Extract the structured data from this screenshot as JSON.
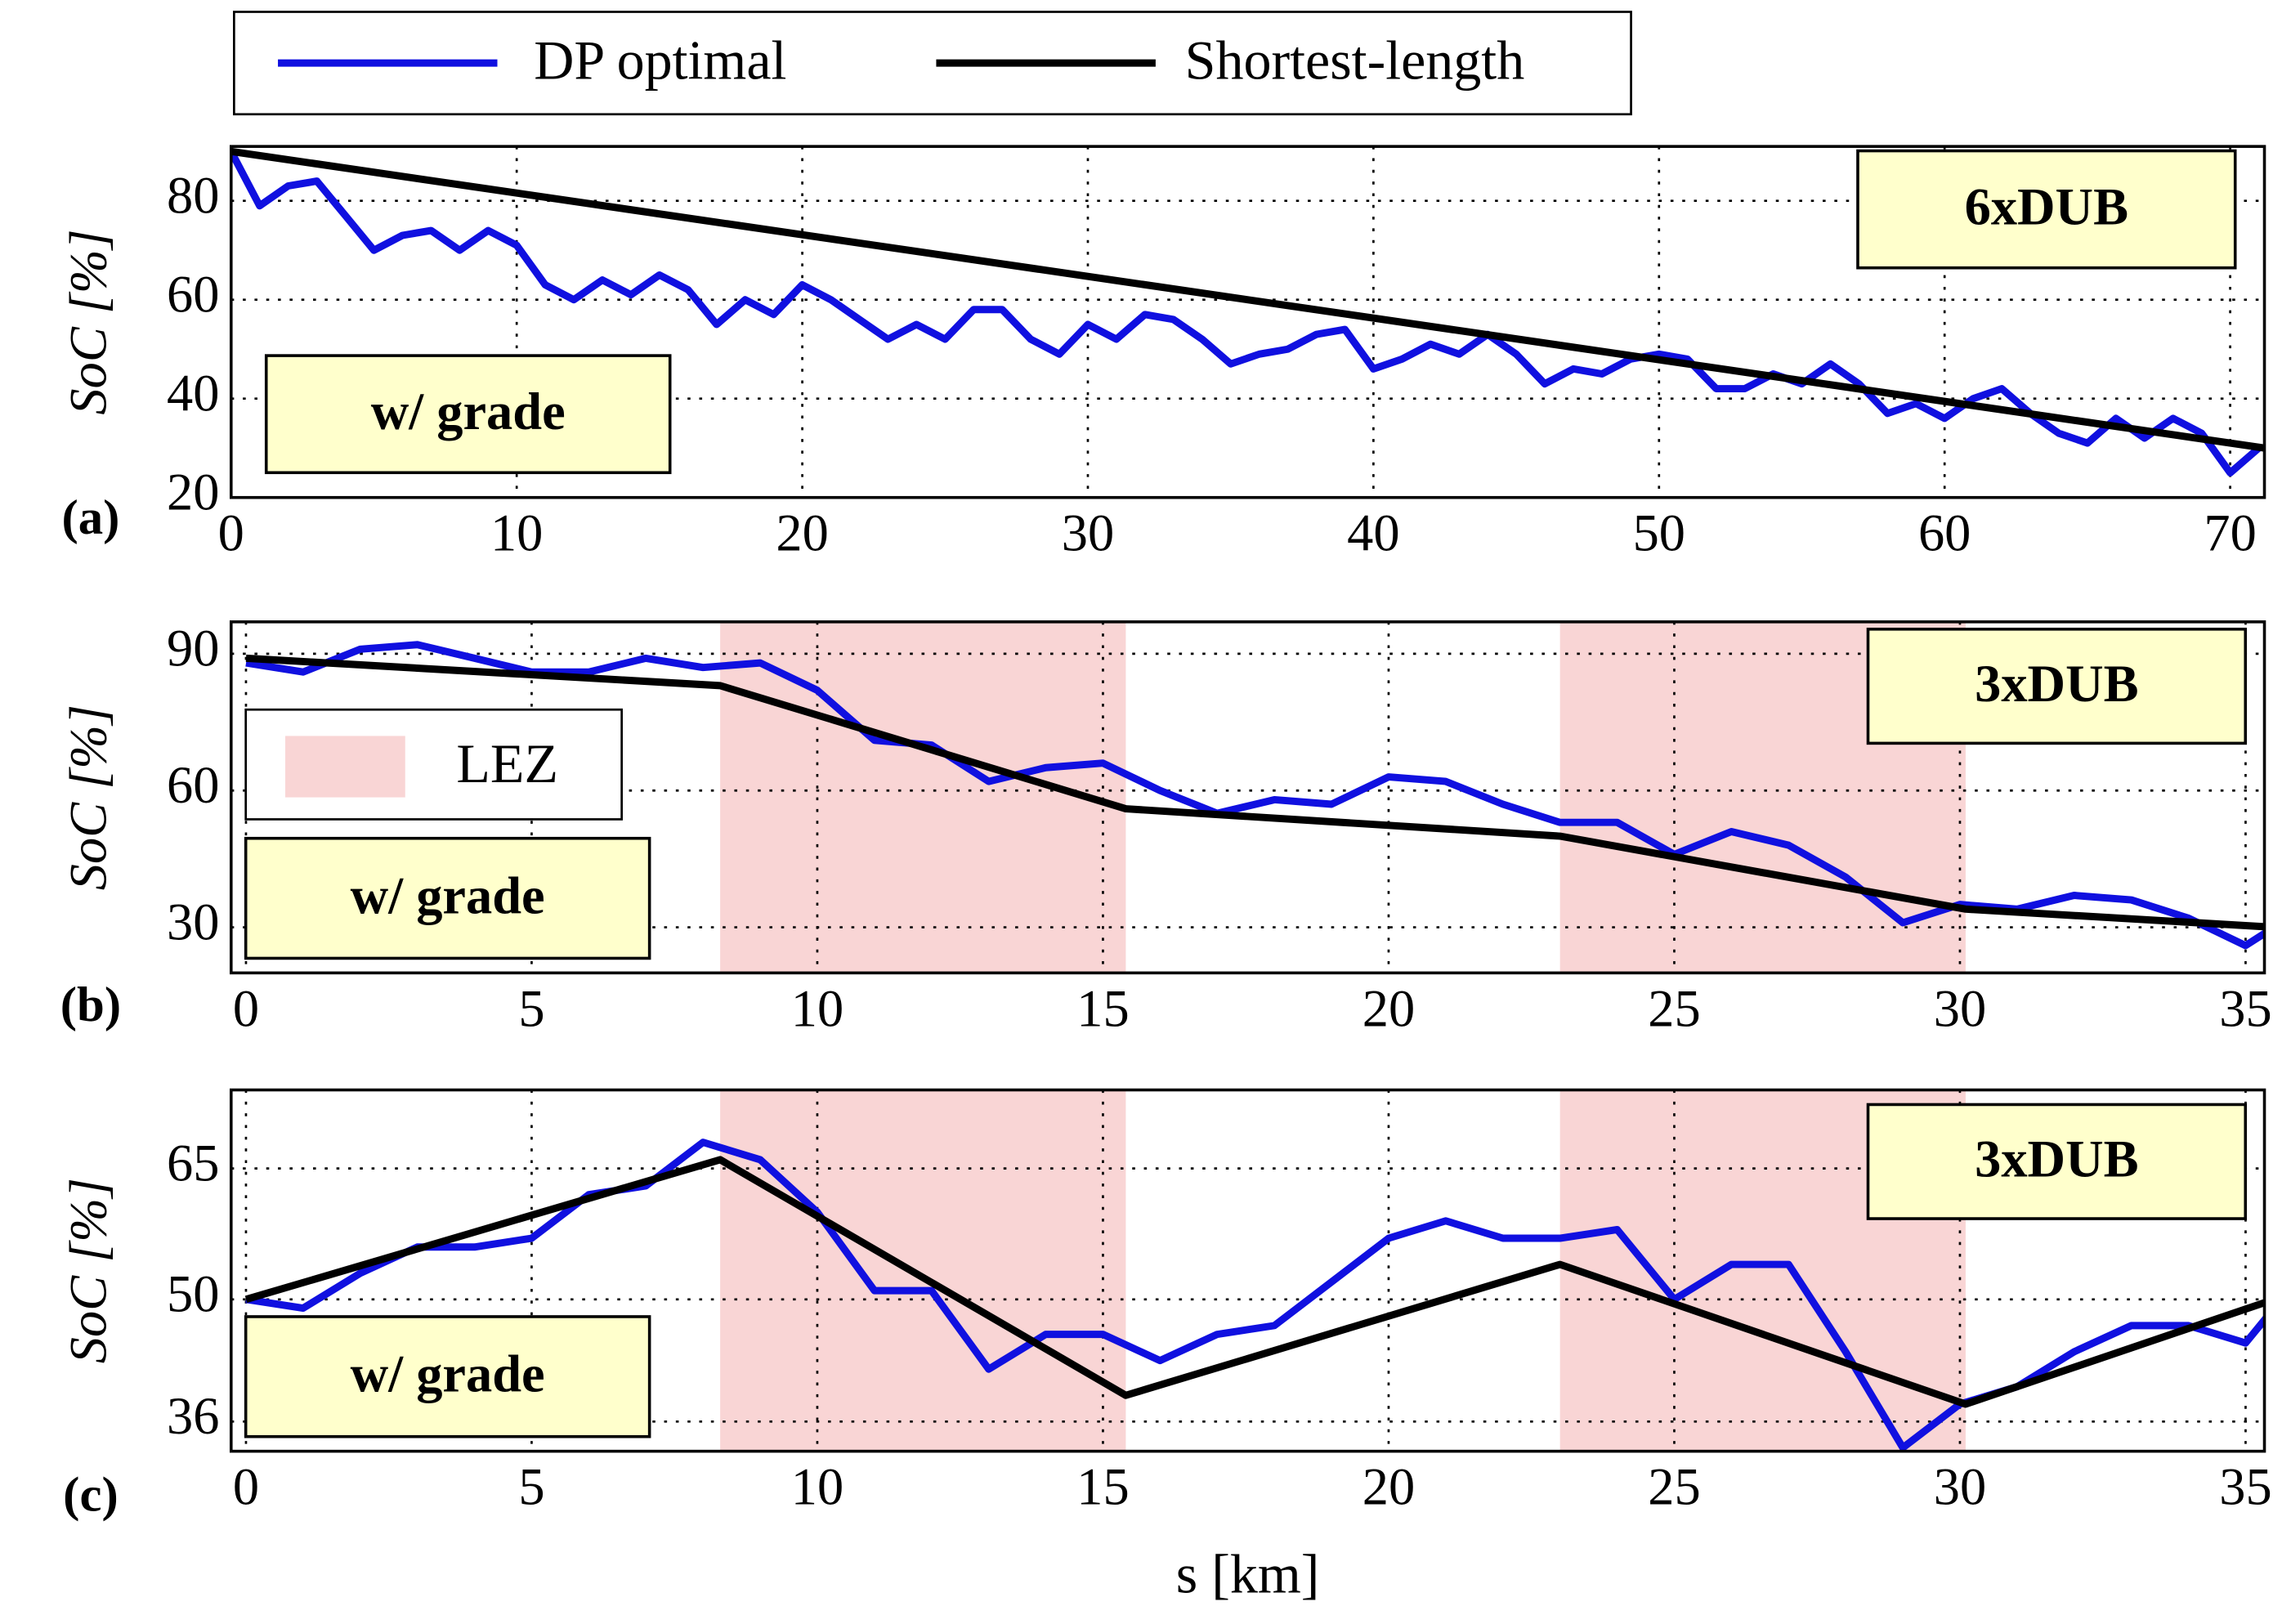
{
  "chart_data": [
    {
      "type": "line",
      "panel_label": "(a)",
      "y_label": "SoC [%]",
      "annotations": [
        "6xDUB",
        "w/ grade"
      ],
      "xlim": [
        0,
        71.2
      ],
      "xticks": [
        0,
        10,
        20,
        30,
        40,
        50,
        60,
        70
      ],
      "ylim": [
        20,
        91
      ],
      "yticks": [
        20,
        40,
        60,
        80
      ],
      "grid": true,
      "series": [
        {
          "name": "DP optimal",
          "color": "#1010e0",
          "x": [
            0,
            1,
            2,
            3,
            4,
            5,
            6,
            7,
            8,
            9,
            10,
            11,
            12,
            13,
            14,
            15,
            16,
            17,
            18,
            19,
            20,
            21,
            22,
            23,
            24,
            25,
            26,
            27,
            28,
            29,
            30,
            31,
            32,
            33,
            34,
            35,
            36,
            37,
            38,
            39,
            40,
            41,
            42,
            43,
            44,
            45,
            46,
            47,
            48,
            49,
            50,
            51,
            52,
            53,
            54,
            55,
            56,
            57,
            58,
            59,
            60,
            61,
            62,
            63,
            64,
            65,
            66,
            67,
            68,
            69,
            70,
            71
          ],
          "values": [
            90,
            79,
            83,
            84,
            77,
            70,
            73,
            74,
            70,
            74,
            71,
            63,
            60,
            64,
            61,
            65,
            62,
            55,
            60,
            57,
            63,
            60,
            56,
            52,
            55,
            52,
            58,
            58,
            52,
            49,
            55,
            52,
            57,
            56,
            52,
            47,
            49,
            50,
            53,
            54,
            46,
            48,
            51,
            49,
            53,
            49,
            43,
            46,
            45,
            48,
            49,
            48,
            42,
            42,
            45,
            43,
            47,
            43,
            37,
            39,
            36,
            40,
            42,
            37,
            33,
            31,
            36,
            32,
            36,
            33,
            25,
            30
          ]
        },
        {
          "name": "Shortest-length",
          "color": "#000000",
          "x": [
            0,
            71.2
          ],
          "values": [
            90,
            30
          ]
        }
      ]
    },
    {
      "type": "line",
      "panel_label": "(b)",
      "y_label": "SoC [%]",
      "annotations": [
        "3xDUB",
        "w/ grade"
      ],
      "region_label": "LEZ",
      "region_color": "#f9d5d5",
      "regions": [
        [
          8.3,
          15.4
        ],
        [
          23,
          30.1
        ]
      ],
      "xlim": [
        -0.26,
        35.33
      ],
      "xticks": [
        0,
        5,
        10,
        15,
        20,
        25,
        30,
        35
      ],
      "ylim": [
        20,
        97
      ],
      "yticks": [
        30,
        60,
        90
      ],
      "grid": true,
      "series": [
        {
          "color": "#1010e0",
          "x": [
            0,
            1,
            2,
            3,
            4,
            5,
            6,
            7,
            8,
            9,
            10,
            11,
            12,
            13,
            14,
            15,
            16,
            17,
            18,
            19,
            20,
            21,
            22,
            23,
            24,
            25,
            26,
            27,
            28,
            29,
            30,
            31,
            32,
            33,
            34,
            35,
            35.5
          ],
          "values": [
            88,
            86,
            91,
            92,
            89,
            86,
            86,
            89,
            87,
            88,
            82,
            71,
            70,
            62,
            65,
            66,
            60,
            55,
            58,
            57,
            63,
            62,
            57,
            53,
            53,
            46,
            51,
            48,
            41,
            31,
            35,
            34,
            37,
            36,
            32,
            26,
            30
          ]
        },
        {
          "color": "#000000",
          "x": [
            0,
            8.3,
            15.4,
            23,
            30.1,
            35.5
          ],
          "values": [
            89,
            83,
            56,
            50,
            34,
            30
          ]
        }
      ]
    },
    {
      "type": "line",
      "panel_label": "(c)",
      "y_label": "SoC [%]",
      "x_label": "s [km]",
      "annotations": [
        "3xDUB",
        "w/ grade"
      ],
      "region_color": "#f9d5d5",
      "regions": [
        [
          8.3,
          15.4
        ],
        [
          23,
          30.1
        ]
      ],
      "xlim": [
        -0.26,
        35.33
      ],
      "xticks": [
        0,
        5,
        10,
        15,
        20,
        25,
        30,
        35
      ],
      "ylim": [
        32.6,
        74
      ],
      "yticks": [
        36,
        50,
        65
      ],
      "grid": true,
      "series": [
        {
          "color": "#1010e0",
          "x": [
            0,
            1,
            2,
            3,
            4,
            5,
            6,
            7,
            8,
            9,
            10,
            11,
            12,
            13,
            14,
            15,
            16,
            17,
            18,
            19,
            20,
            21,
            22,
            23,
            24,
            25,
            26,
            27,
            28,
            29,
            30,
            31,
            32,
            33,
            34,
            35,
            35.5
          ],
          "values": [
            50,
            49,
            53,
            56,
            56,
            57,
            62,
            63,
            68,
            66,
            60,
            51,
            51,
            42,
            46,
            46,
            43,
            46,
            47,
            52,
            57,
            59,
            57,
            57,
            58,
            50,
            54,
            54,
            44,
            33,
            38,
            40,
            44,
            47,
            47,
            45,
            49
          ]
        },
        {
          "color": "#000000",
          "x": [
            0,
            8.3,
            15.4,
            23,
            30.1,
            35.5
          ],
          "values": [
            50,
            66,
            39,
            54,
            38,
            50
          ]
        }
      ]
    }
  ]
}
